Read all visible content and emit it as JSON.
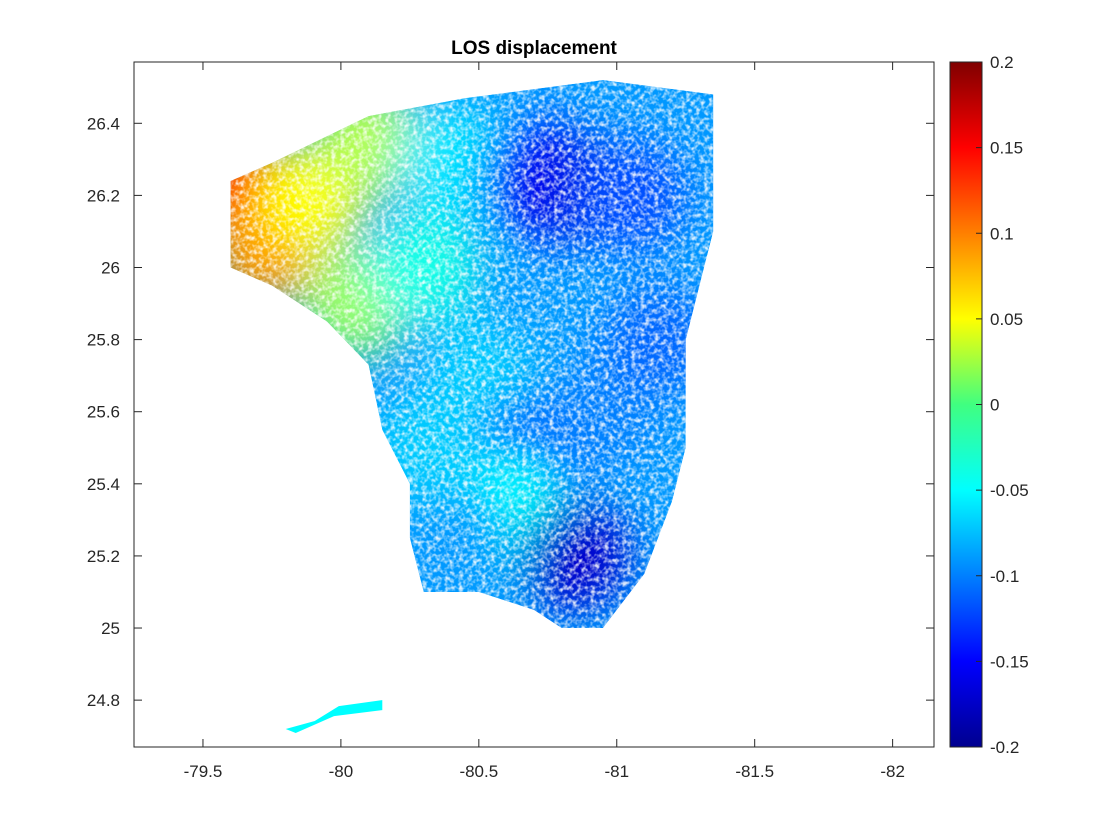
{
  "chart_data": {
    "type": "heatmap",
    "title": "LOS displacement",
    "xlabel": "",
    "ylabel": "",
    "x_axis": {
      "reversed": true,
      "range": [
        -79.25,
        -82.15
      ],
      "ticks": [
        -79.5,
        -80,
        -80.5,
        -81,
        -81.5,
        -82
      ],
      "tick_labels": [
        "-79.5",
        "-80",
        "-80.5",
        "-81",
        "-81.5",
        "-82"
      ]
    },
    "y_axis": {
      "range": [
        24.67,
        26.57
      ],
      "ticks": [
        24.8,
        25,
        25.2,
        25.4,
        25.6,
        25.8,
        26,
        26.2,
        26.4
      ],
      "tick_labels": [
        "24.8",
        "25",
        "25.2",
        "25.4",
        "25.6",
        "25.8",
        "26",
        "26.2",
        "26.4"
      ]
    },
    "colorbar": {
      "colormap": "jet",
      "range": [
        -0.2,
        0.2
      ],
      "ticks": [
        0.2,
        0.15,
        0.1,
        0.05,
        0,
        -0.05,
        -0.1,
        -0.15,
        -0.2
      ],
      "tick_labels": [
        "0.2",
        "0.15",
        "0.1",
        "0.05",
        "0",
        "-0.05",
        "-0.1",
        "-0.15",
        "-0.2"
      ]
    },
    "grid": false,
    "data_region": {
      "description_values": "LOS displacement field over South Florida; positive values in north-east, negative values in south-west",
      "boundary_lon_lat": [
        [
          -79.6,
          26.24
        ],
        [
          -79.75,
          26.29
        ],
        [
          -80.1,
          26.42
        ],
        [
          -80.45,
          26.47
        ],
        [
          -80.95,
          26.52
        ],
        [
          -81.35,
          26.48
        ],
        [
          -81.35,
          26.1
        ],
        [
          -81.25,
          25.8
        ],
        [
          -81.25,
          25.65
        ],
        [
          -81.25,
          25.5
        ],
        [
          -81.2,
          25.35
        ],
        [
          -81.1,
          25.15
        ],
        [
          -80.95,
          25.0
        ],
        [
          -80.8,
          25.0
        ],
        [
          -80.7,
          25.05
        ],
        [
          -80.5,
          25.1
        ],
        [
          -80.3,
          25.1
        ],
        [
          -80.25,
          25.25
        ],
        [
          -80.25,
          25.4
        ],
        [
          -80.15,
          25.55
        ],
        [
          -80.1,
          25.73
        ],
        [
          -79.95,
          25.85
        ],
        [
          -79.75,
          25.95
        ],
        [
          -79.6,
          26.0
        ]
      ],
      "keys_samples": [
        {
          "lon": -79.62,
          "lat": 26.22,
          "value": 0.14
        },
        {
          "lon": -79.72,
          "lat": 26.05,
          "value": 0.09
        },
        {
          "lon": -79.9,
          "lat": 26.2,
          "value": 0.05
        },
        {
          "lon": -80.1,
          "lat": 26.35,
          "value": 0.02
        },
        {
          "lon": -80.05,
          "lat": 25.9,
          "value": 0.01
        },
        {
          "lon": -80.3,
          "lat": 26.0,
          "value": -0.04
        },
        {
          "lon": -80.4,
          "lat": 26.3,
          "value": -0.06
        },
        {
          "lon": -80.5,
          "lat": 25.7,
          "value": -0.07
        },
        {
          "lon": -80.7,
          "lat": 26.25,
          "value": -0.14
        },
        {
          "lon": -80.85,
          "lat": 26.22,
          "value": -0.16
        },
        {
          "lon": -81.05,
          "lat": 26.2,
          "value": -0.12
        },
        {
          "lon": -80.7,
          "lat": 25.5,
          "value": -0.11
        },
        {
          "lon": -80.6,
          "lat": 25.33,
          "value": -0.05
        },
        {
          "lon": -80.85,
          "lat": 25.2,
          "value": -0.17
        },
        {
          "lon": -80.4,
          "lat": 25.25,
          "value": -0.09
        },
        {
          "lon": -80.95,
          "lat": 25.6,
          "value": -0.1
        },
        {
          "lon": -81.15,
          "lat": 25.8,
          "value": -0.11
        },
        {
          "lon": -80.3,
          "lat": 25.5,
          "value": -0.07
        }
      ],
      "keys_islands": [
        {
          "lon_range": [
            -79.8,
            -80.15
          ],
          "lat_range": [
            24.72,
            24.8
          ],
          "value": -0.05
        }
      ]
    }
  }
}
